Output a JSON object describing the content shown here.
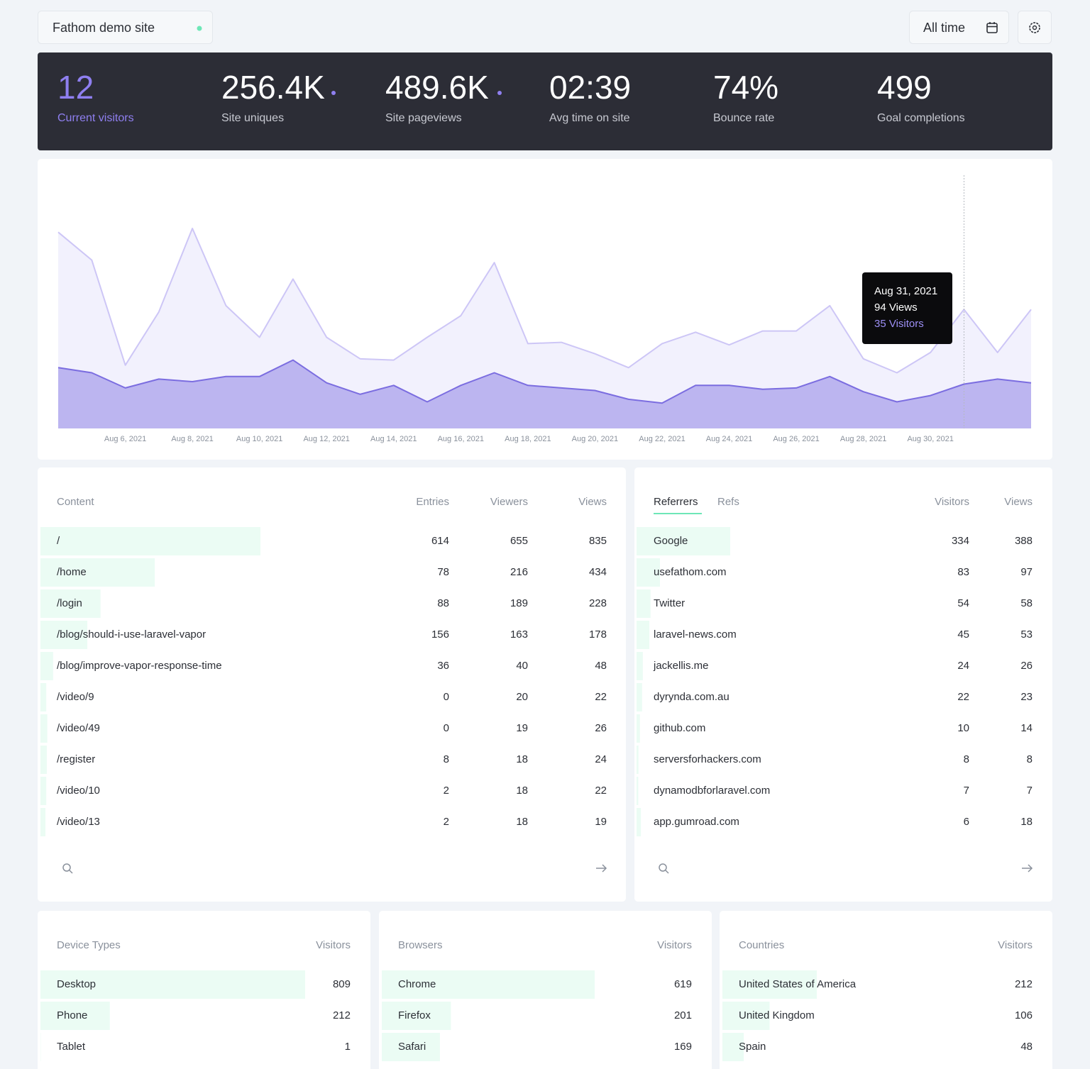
{
  "header": {
    "site": "Fathom demo site",
    "range": "All time"
  },
  "stats": [
    {
      "value": "12",
      "label": "Current visitors"
    },
    {
      "value": "256.4K",
      "label": "Site uniques"
    },
    {
      "value": "489.6K",
      "label": "Site pageviews"
    },
    {
      "value": "02:39",
      "label": "Avg time on site"
    },
    {
      "value": "74%",
      "label": "Bounce rate"
    },
    {
      "value": "499",
      "label": "Goal completions"
    }
  ],
  "chart_data": {
    "type": "area",
    "categories": [
      null,
      null,
      "Aug 6, 2021",
      null,
      "Aug 8, 2021",
      null,
      "Aug 10, 2021",
      null,
      "Aug 12, 2021",
      null,
      "Aug 14, 2021",
      null,
      "Aug 16, 2021",
      null,
      "Aug 18, 2021",
      null,
      "Aug 20, 2021",
      null,
      "Aug 22, 2021",
      null,
      "Aug 24, 2021",
      null,
      "Aug 26, 2021",
      null,
      "Aug 28, 2021",
      null,
      "Aug 30, 2021",
      null,
      null,
      null
    ],
    "series": [
      {
        "color": "#cdc6f6",
        "values": [
          155,
          133,
          50,
          92,
          158,
          97,
          72,
          118,
          72,
          55,
          54,
          72,
          89,
          131,
          67,
          68,
          59,
          48,
          67,
          76,
          66,
          77,
          77,
          97,
          55,
          44,
          60,
          94,
          60,
          94
        ]
      },
      {
        "color": "#7b6de0",
        "values": [
          48,
          44,
          32,
          39,
          37,
          41,
          41,
          54,
          36,
          27,
          34,
          21,
          34,
          44,
          34,
          32,
          30,
          23,
          20,
          34,
          34,
          31,
          32,
          41,
          29,
          21,
          26,
          35,
          39,
          36
        ]
      }
    ],
    "ylim": [
      0,
      200
    ],
    "tooltip": {
      "date": "Aug 31, 2021",
      "lines": [
        "94 Views",
        "35 Visitors"
      ]
    }
  },
  "content": {
    "columns": [
      "Content",
      "Entries",
      "Viewers",
      "Views"
    ],
    "rows": [
      [
        "/",
        614,
        655,
        835
      ],
      [
        "/home",
        78,
        216,
        434
      ],
      [
        "/login",
        88,
        189,
        228
      ],
      [
        "/blog/should-i-use-laravel-vapor",
        156,
        163,
        178
      ],
      [
        "/blog/improve-vapor-response-time",
        36,
        40,
        48
      ],
      [
        "/video/9",
        0,
        20,
        22
      ],
      [
        "/video/49",
        0,
        19,
        26
      ],
      [
        "/register",
        8,
        18,
        24
      ],
      [
        "/video/10",
        2,
        18,
        22
      ],
      [
        "/video/13",
        2,
        18,
        19
      ]
    ]
  },
  "referrers": {
    "tabs": [
      "Referrers",
      "Refs"
    ],
    "columns": [
      "Visitors",
      "Views"
    ],
    "rows": [
      [
        "Google",
        334,
        388
      ],
      [
        "usefathom.com",
        83,
        97
      ],
      [
        "Twitter",
        54,
        58
      ],
      [
        "laravel-news.com",
        45,
        53
      ],
      [
        "jackellis.me",
        24,
        26
      ],
      [
        "dyrynda.com.au",
        22,
        23
      ],
      [
        "github.com",
        10,
        14
      ],
      [
        "serversforhackers.com",
        8,
        8
      ],
      [
        "dynamodbforlaravel.com",
        7,
        7
      ],
      [
        "app.gumroad.com",
        6,
        18
      ]
    ]
  },
  "devices": {
    "columns": [
      "Device Types",
      "Visitors"
    ],
    "rows": [
      [
        "Desktop",
        809
      ],
      [
        "Phone",
        212
      ],
      [
        "Tablet",
        1
      ]
    ]
  },
  "browsers": {
    "columns": [
      "Browsers",
      "Visitors"
    ],
    "rows": [
      [
        "Chrome",
        619
      ],
      [
        "Firefox",
        201
      ],
      [
        "Safari",
        169
      ]
    ]
  },
  "countries": {
    "columns": [
      "Countries",
      "Visitors"
    ],
    "rows": [
      [
        "United States of America",
        212
      ],
      [
        "United Kingdom",
        106
      ],
      [
        "Spain",
        48
      ]
    ]
  }
}
